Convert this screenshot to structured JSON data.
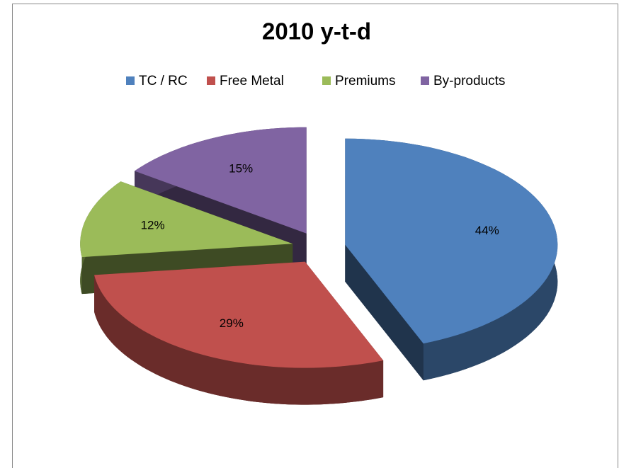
{
  "chart_data": {
    "type": "pie",
    "title": "2010 y-t-d",
    "categories": [
      "TC / RC",
      "Free Metal",
      "Premiums",
      "By-products"
    ],
    "values": [
      44,
      29,
      12,
      15
    ],
    "value_labels": [
      "44%",
      "29%",
      "12%",
      "15%"
    ],
    "colors": [
      "#4f81bd",
      "#c0504d",
      "#9bbb59",
      "#8064a2"
    ],
    "legend": "top"
  }
}
